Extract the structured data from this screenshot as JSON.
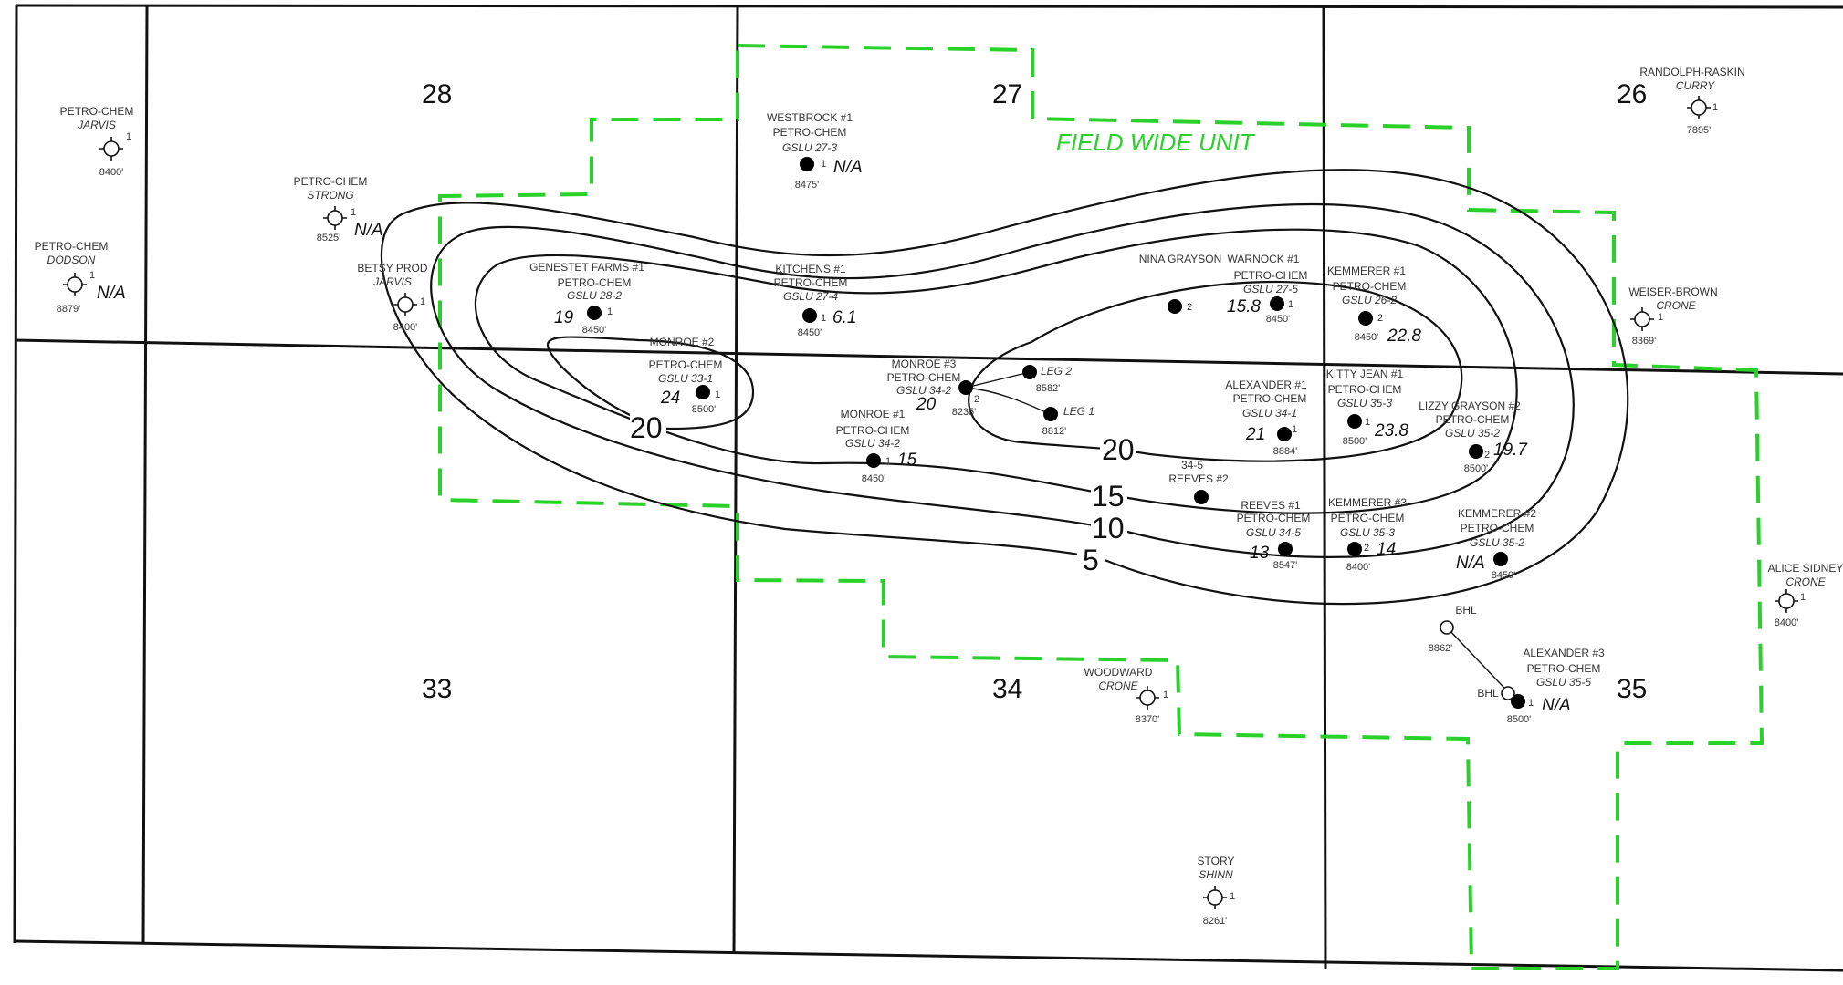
{
  "unit_label": "FIELD WIDE UNIT",
  "sections": [
    {
      "id": "28",
      "label": "28"
    },
    {
      "id": "27",
      "label": "27"
    },
    {
      "id": "26",
      "label": "26"
    },
    {
      "id": "33",
      "label": "33"
    },
    {
      "id": "34",
      "label": "34"
    },
    {
      "id": "35",
      "label": "35"
    }
  ],
  "contours": [
    {
      "id": "c5",
      "label": "5"
    },
    {
      "id": "c10",
      "label": "10"
    },
    {
      "id": "c15",
      "label": "15"
    },
    {
      "id": "c20a",
      "label": "20"
    },
    {
      "id": "c20b",
      "label": "20"
    }
  ],
  "wells": [
    {
      "id": "w1",
      "l1": "PETRO-CHEM",
      "l2": "JARVIS",
      "num": "1",
      "depth": "8400'",
      "value": ""
    },
    {
      "id": "w2",
      "l1": "PETRO-CHEM",
      "l2": "DODSON",
      "num": "1",
      "depth": "8879'",
      "value": "N/A"
    },
    {
      "id": "w3",
      "l1": "PETRO-CHEM",
      "l2": "STRONG",
      "num": "1",
      "depth": "8525'",
      "value": "N/A"
    },
    {
      "id": "w4",
      "l1": "BETSY PROD",
      "l2": "JARVIS",
      "num": "1",
      "depth": "8400'",
      "value": ""
    },
    {
      "id": "w5",
      "l0": "GENESTET FARMS #1",
      "l1": "PETRO-CHEM",
      "l2": "GSLU 28-2",
      "num": "1",
      "depth": "8450'",
      "value": "19"
    },
    {
      "id": "w6",
      "l0": "MONROE #2",
      "l1": "PETRO-CHEM",
      "l2": "GSLU 33-1",
      "num": "1",
      "depth": "8500'",
      "value": "24"
    },
    {
      "id": "w7",
      "l0": "WESTBROCK #1",
      "l1": "PETRO-CHEM",
      "l2": "GSLU 27-3",
      "num": "1",
      "depth": "8475'",
      "value": "N/A"
    },
    {
      "id": "w8",
      "l0": "KITCHENS #1",
      "l1": "PETRO-CHEM",
      "l2": "GSLU 27-4",
      "num": "1",
      "depth": "8450'",
      "value": "6.1"
    },
    {
      "id": "w9",
      "l0": "MONROE #3",
      "l1": "PETRO-CHEM",
      "l2": "GSLU 34-2",
      "num": "2",
      "depth": "8235'",
      "value": "20"
    },
    {
      "id": "w10",
      "l0": "MONROE #1",
      "l1": "PETRO-CHEM",
      "l2": "GSLU 34-2",
      "num": "1",
      "depth": "8450'",
      "value": "15"
    },
    {
      "id": "w11",
      "l0": "NINA GRAYSON",
      "num": "2"
    },
    {
      "id": "w12",
      "l0": "WARNOCK #1",
      "l1": "PETRO-CHEM",
      "l2": "GSLU 27-5",
      "num": "1",
      "depth": "8450'",
      "value": "15.8"
    },
    {
      "id": "w13",
      "l0": "KEMMERER #1",
      "l1": "PETRO-CHEM",
      "l2": "GSLU 26-2",
      "num": "2",
      "depth": "8450'",
      "value": "22.8"
    },
    {
      "id": "w14",
      "l0": "KITTY JEAN #1",
      "l1": "PETRO-CHEM",
      "l2": "GSLU 35-3",
      "num": "1",
      "depth": "8500'",
      "value": "23.8"
    },
    {
      "id": "w15",
      "l0": "ALEXANDER #1",
      "l1": "PETRO-CHEM",
      "l2": "GSLU 34-1",
      "num": "1",
      "depth": "8884'",
      "value": "21"
    },
    {
      "id": "w16",
      "l0": "LIZZY GRAYSON #2",
      "l1": "PETRO-CHEM",
      "l2": "GSLU 35-2",
      "num": "2",
      "depth": "8500'",
      "value": "19.7"
    },
    {
      "id": "w17",
      "l0": "34-5",
      "l1": "REEVES #2"
    },
    {
      "id": "w18",
      "l0": "REEVES #1",
      "l1": "PETRO-CHEM",
      "l2": "GSLU 34-5",
      "depth": "8547'",
      "value": "13"
    },
    {
      "id": "w19",
      "l0": "KEMMERER #3",
      "l1": "PETRO-CHEM",
      "l2": "GSLU 35-3",
      "num": "2",
      "depth": "8400'",
      "value": "14"
    },
    {
      "id": "w20",
      "l0": "KEMMERER #2",
      "l1": "PETRO-CHEM",
      "l2": "GSLU 35-2",
      "depth": "8450'",
      "value": "N/A"
    },
    {
      "id": "w21",
      "l0": "RANDOLPH-RASKIN",
      "l2": "CURRY",
      "num": "1",
      "depth": "7895'"
    },
    {
      "id": "w22",
      "l0": "WEISER-BROWN",
      "l2": "CRONE",
      "num": "1",
      "depth": "8369'"
    },
    {
      "id": "w23",
      "l0": "ALICE SIDNEY",
      "l2": "CRONE",
      "num": "1",
      "depth": "8400'"
    },
    {
      "id": "w24",
      "l0": "WOODWARD",
      "l2": "CRONE",
      "num": "1",
      "depth": "8370'"
    },
    {
      "id": "w25",
      "l0": "STORY",
      "l2": "SHINN",
      "num": "1",
      "depth": "8261'"
    },
    {
      "id": "w26",
      "l0": "ALEXANDER #3",
      "l1": "PETRO-CHEM",
      "l2": "GSLU 35-5",
      "num": "1",
      "depth": "8500'",
      "value": "N/A"
    }
  ],
  "laterals": [
    {
      "id": "leg2",
      "label": "LEG 2",
      "depth": "8582'"
    },
    {
      "id": "leg1",
      "label": "LEG 1",
      "depth": "8812'"
    }
  ],
  "bhl": [
    {
      "id": "bhl1",
      "label": "BHL",
      "depth": "8862'"
    },
    {
      "id": "bhl2",
      "label": "BHL"
    }
  ]
}
